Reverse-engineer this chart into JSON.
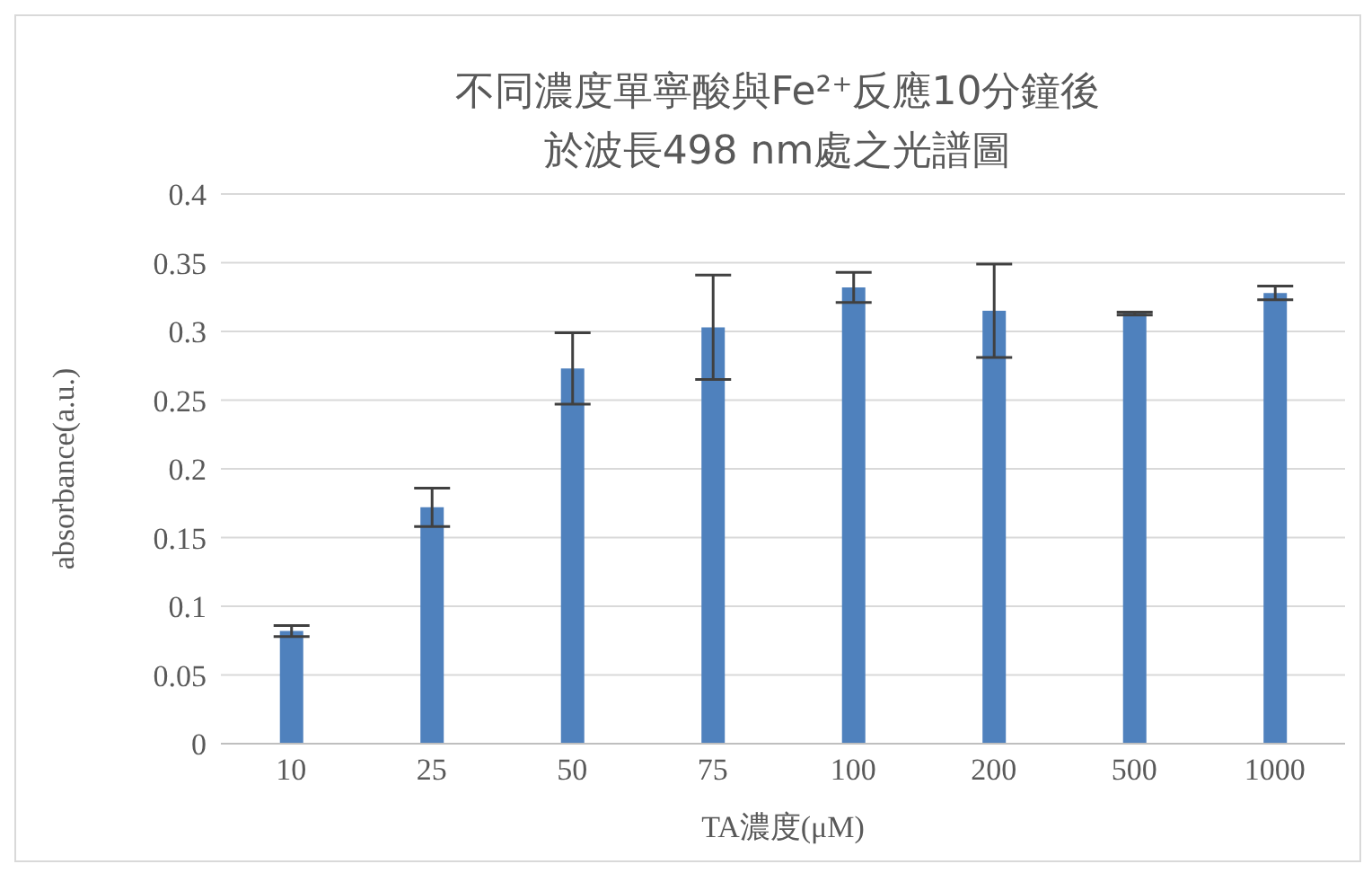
{
  "chart_data": {
    "type": "bar",
    "title": "不同濃度單寧酸與Fe²⁺反應10分鐘後於波長498 nm處之光譜圖",
    "xlabel": "TA濃度(μM)",
    "ylabel": "absorbance(a.u.)",
    "categories": [
      "10",
      "25",
      "50",
      "75",
      "100",
      "200",
      "500",
      "1000"
    ],
    "values": [
      0.082,
      0.172,
      0.273,
      0.303,
      0.332,
      0.315,
      0.313,
      0.328
    ],
    "errors": [
      0.004,
      0.014,
      0.026,
      0.038,
      0.011,
      0.034,
      0.001,
      0.005
    ],
    "color": "#4f81bd",
    "ylim": [
      0,
      0.4
    ],
    "yticks": [
      0,
      0.05,
      0.1,
      0.15,
      0.2,
      0.25,
      0.3,
      0.35,
      0.4
    ],
    "grid": "y",
    "legend": false
  }
}
